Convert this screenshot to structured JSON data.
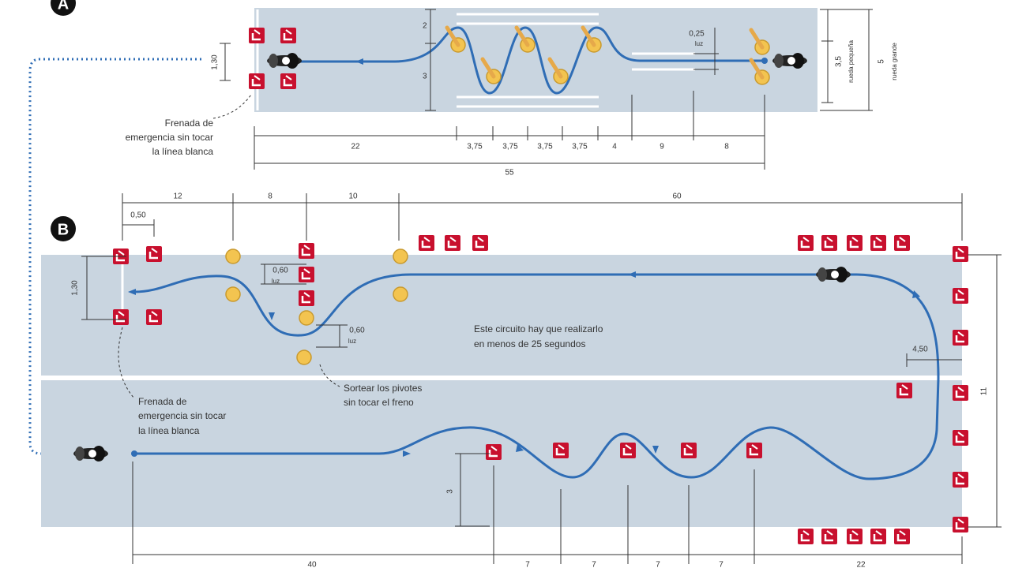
{
  "section_a": {
    "label": "A",
    "vertical_labels": [
      "2",
      "3",
      "1,30",
      "0,25",
      "luz",
      "3,5",
      "rueda pequeña",
      "5",
      "rueda grande"
    ],
    "horizontal_labels": [
      "22",
      "3,75",
      "3,75",
      "3,75",
      "3,75",
      "4",
      "9",
      "8",
      "55"
    ],
    "note": [
      "Frenada de",
      "emergencia sin tocar",
      "la línea blanca"
    ]
  },
  "section_b": {
    "label": "B",
    "top_labels": [
      "12",
      "8",
      "10",
      "60",
      "0,50"
    ],
    "vertical_labels": [
      "1,30",
      "0,60",
      "luz",
      "0,60",
      "luz",
      "4,50",
      "11",
      "3"
    ],
    "bottom_labels": [
      "40",
      "7",
      "7",
      "7",
      "7",
      "22"
    ],
    "circuit_note": [
      "Este circuito hay que realizarlo",
      "en menos de 25 segundos"
    ],
    "brake_note": [
      "Frenada de",
      "emergencia sin tocar",
      "la línea blanca"
    ],
    "pivot_note": [
      "Sortear los pivotes",
      "sin tocar el freno"
    ]
  }
}
